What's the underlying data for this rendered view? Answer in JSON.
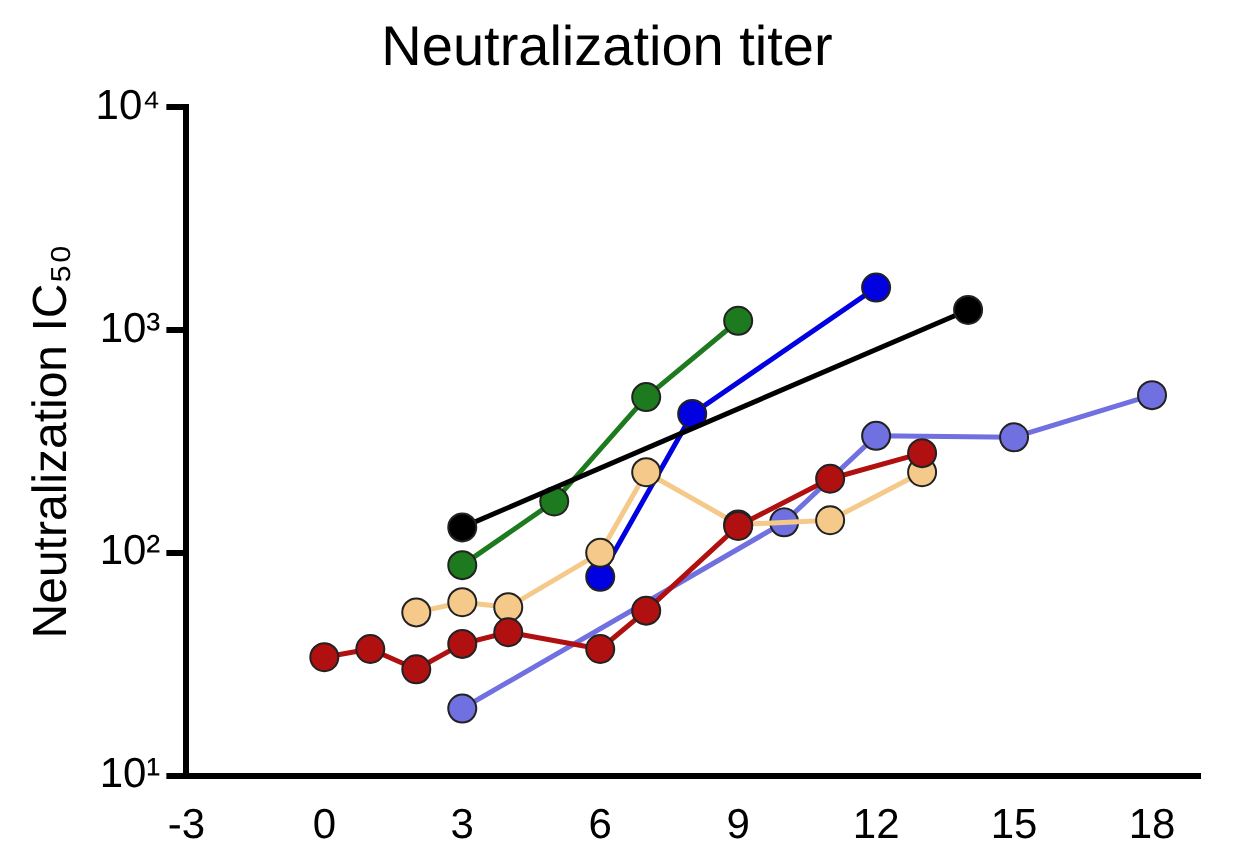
{
  "chart_data": {
    "type": "line",
    "title": "Neutralization titer",
    "ylabel": "Neutralization IC₅₀",
    "log": "y",
    "grid": false,
    "legend": false,
    "marker": "circle",
    "line_style": "solid",
    "xlim": [
      -3,
      19
    ],
    "xticks": [
      -3,
      0,
      3,
      6,
      9,
      12,
      15,
      18
    ],
    "ylim": [
      10,
      10000
    ],
    "yticks": [
      {
        "value": 10,
        "label": "10¹"
      },
      {
        "value": 100,
        "label": "10²"
      },
      {
        "value": 1000,
        "label": "10³"
      },
      {
        "value": 10000,
        "label": "10⁴"
      }
    ],
    "series": [
      {
        "color": "#1e7a1e",
        "x": [
          3,
          5,
          7,
          9
        ],
        "values": [
          88,
          170,
          500,
          1100
        ]
      },
      {
        "color": "#0000e0",
        "x": [
          6,
          8,
          12
        ],
        "values": [
          78,
          420,
          1550
        ]
      },
      {
        "color": "#000000",
        "x": [
          3,
          14
        ],
        "values": [
          130,
          1230
        ]
      },
      {
        "color": "#7070e0",
        "x": [
          3,
          10,
          12,
          15,
          18
        ],
        "values": [
          20,
          137,
          335,
          330,
          510
        ]
      },
      {
        "color": "#f5c98a",
        "x": [
          2,
          3,
          4,
          6,
          7,
          9,
          11,
          13
        ],
        "values": [
          54,
          60,
          57,
          100,
          230,
          134,
          140,
          230
        ]
      },
      {
        "color": "#b01010",
        "x": [
          0,
          1,
          2,
          3,
          4,
          6,
          7,
          9,
          11,
          13
        ],
        "values": [
          34,
          37,
          30,
          39,
          44,
          37,
          55,
          132,
          215,
          280
        ]
      }
    ]
  }
}
